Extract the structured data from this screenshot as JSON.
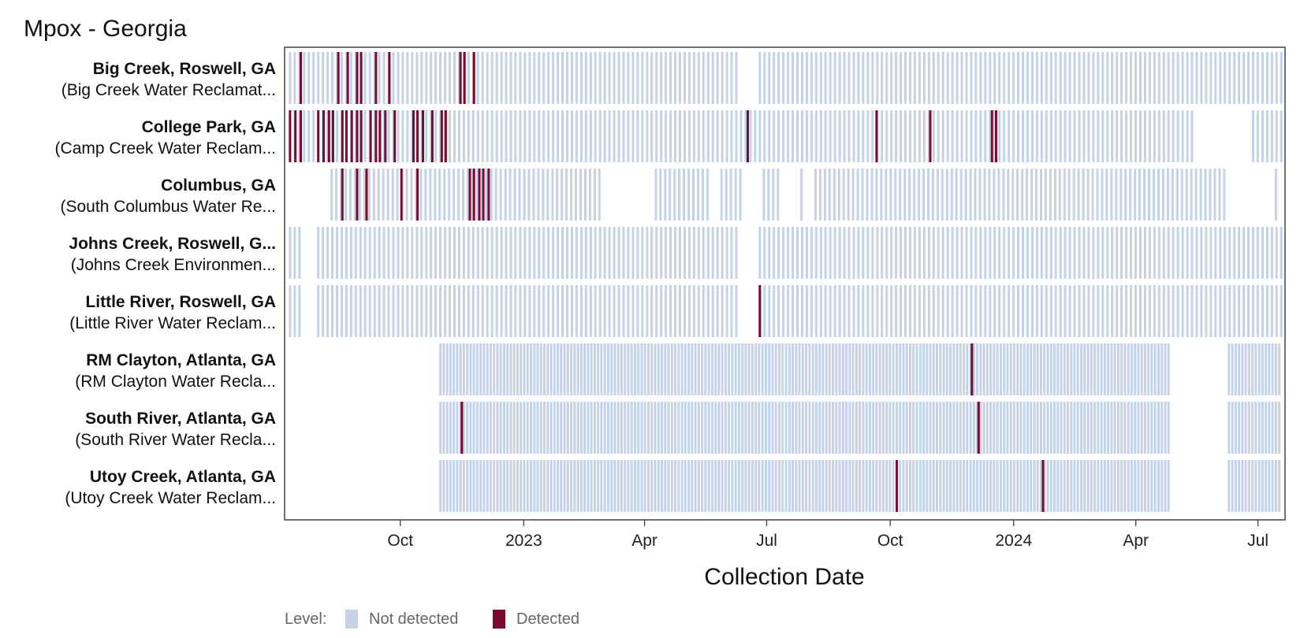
{
  "chart_data": {
    "type": "heatmap",
    "title": "Mpox - Georgia",
    "xlabel": "Collection Date",
    "x_range": [
      "2022-07-08",
      "2024-07-20"
    ],
    "x_ticks": [
      {
        "date": "2022-10-01",
        "label": "Oct"
      },
      {
        "date": "2023-01-01",
        "label": "2023"
      },
      {
        "date": "2023-04-01",
        "label": "Apr"
      },
      {
        "date": "2023-07-01",
        "label": "Jul"
      },
      {
        "date": "2023-10-01",
        "label": "Oct"
      },
      {
        "date": "2024-01-01",
        "label": "2024"
      },
      {
        "date": "2024-04-01",
        "label": "Apr"
      },
      {
        "date": "2024-07-01",
        "label": "Jul"
      }
    ],
    "legend": {
      "title": "Level:",
      "position": "bottom-left",
      "entries": [
        {
          "label": "Not detected",
          "color": "#c5d3e8"
        },
        {
          "label": "Detected",
          "color": "#7a0a2e"
        }
      ]
    },
    "colors": {
      "not_detected": "#c5d3e8",
      "detected": "#7a0a2e"
    },
    "rows": [
      {
        "site": "Big Creek, Roswell, GA",
        "plant": "(Big Creek Water Reclamat...",
        "start": "2022-07-10",
        "end": "2024-07-18",
        "interval_days": 3.5,
        "gaps": [
          [
            "2023-06-11",
            "2023-06-24"
          ]
        ],
        "detected": [
          "2022-07-18",
          "2022-08-15",
          "2022-08-22",
          "2022-08-29",
          "2022-09-01",
          "2022-09-12",
          "2022-09-22",
          "2022-11-14",
          "2022-11-17",
          "2022-11-24"
        ]
      },
      {
        "site": "College Park, GA",
        "plant": "(Camp Creek Water Reclam...",
        "start": "2022-07-10",
        "end": "2024-07-18",
        "interval_days": 3.5,
        "gaps": [
          [
            "2024-05-13",
            "2024-06-26"
          ]
        ],
        "detected": [
          "2022-07-10",
          "2022-07-14",
          "2022-07-18",
          "2022-07-31",
          "2022-08-04",
          "2022-08-08",
          "2022-08-11",
          "2022-08-18",
          "2022-08-21",
          "2022-08-25",
          "2022-08-29",
          "2022-09-01",
          "2022-09-08",
          "2022-09-12",
          "2022-09-15",
          "2022-09-19",
          "2022-09-26",
          "2022-10-10",
          "2022-10-13",
          "2022-10-17",
          "2022-10-24",
          "2022-10-31",
          "2022-11-03",
          "2023-06-16",
          "2023-09-20",
          "2023-10-30",
          "2023-12-15",
          "2023-12-18"
        ]
      },
      {
        "site": "Columbus, GA",
        "plant": "(South Columbus Water Re...",
        "start": "2022-08-10",
        "end": "2024-07-15",
        "interval_days": 3.5,
        "gaps": [
          [
            "2023-03-01",
            "2023-04-05"
          ],
          [
            "2023-05-20",
            "2023-05-27"
          ],
          [
            "2023-06-12",
            "2023-06-25"
          ],
          [
            "2023-07-10",
            "2023-07-24"
          ],
          [
            "2023-07-28",
            "2023-08-05"
          ],
          [
            "2024-06-07",
            "2024-07-10"
          ]
        ],
        "detected": [
          "2022-08-18",
          "2022-08-29",
          "2022-09-05",
          "2022-10-01",
          "2022-10-13",
          "2022-11-21",
          "2022-11-24",
          "2022-11-28",
          "2022-12-01",
          "2022-12-05"
        ]
      },
      {
        "site": "Johns Creek, Roswell, G...",
        "plant": "(Johns Creek Environmen...",
        "start": "2022-07-10",
        "end": "2024-07-18",
        "interval_days": 3.5,
        "gaps": [
          [
            "2022-07-20",
            "2022-07-28"
          ],
          [
            "2023-06-11",
            "2023-06-24"
          ]
        ],
        "detected": []
      },
      {
        "site": "Little River, Roswell, GA",
        "plant": "(Little River Water Reclam...",
        "start": "2022-07-10",
        "end": "2024-07-18",
        "interval_days": 3.5,
        "gaps": [
          [
            "2022-07-20",
            "2022-07-28"
          ],
          [
            "2023-06-11",
            "2023-06-24"
          ]
        ],
        "detected": [
          "2023-06-25"
        ]
      },
      {
        "site": "RM Clayton, Atlanta, GA",
        "plant": "(RM Clayton Water Recla...",
        "start": "2022-10-30",
        "end": "2024-07-18",
        "interval_days": 2.5,
        "gaps": [
          [
            "2024-04-26",
            "2024-06-07"
          ]
        ],
        "detected": [
          "2023-11-30"
        ]
      },
      {
        "site": "South River, Atlanta, GA",
        "plant": "(South River Water Recla...",
        "start": "2022-10-30",
        "end": "2024-07-18",
        "interval_days": 2.5,
        "gaps": [
          [
            "2024-04-26",
            "2024-06-07"
          ]
        ],
        "detected": [
          "2022-11-15",
          "2023-12-05"
        ]
      },
      {
        "site": "Utoy Creek, Atlanta, GA",
        "plant": "(Utoy Creek Water Reclam...",
        "start": "2022-10-30",
        "end": "2024-07-18",
        "interval_days": 2.5,
        "gaps": [
          [
            "2024-04-26",
            "2024-06-07"
          ]
        ],
        "detected": [
          "2023-10-05",
          "2024-01-22"
        ]
      }
    ]
  }
}
